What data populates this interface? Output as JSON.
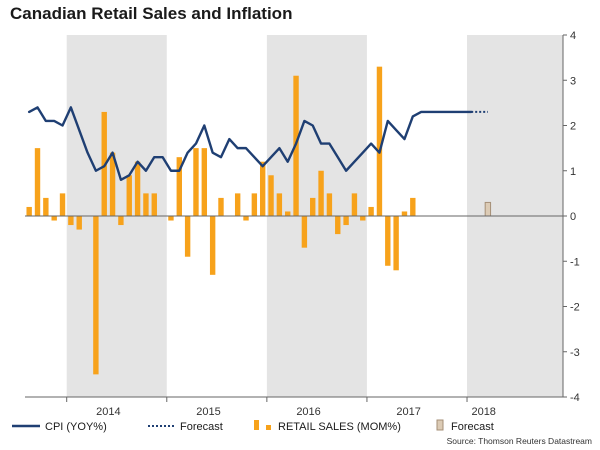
{
  "colors": {
    "cpi": "#1f3f73",
    "retail": "#f7a21b",
    "retail_forecast_fill": "#dccbb5",
    "retail_forecast_stroke": "#a58f77",
    "shade": "#e4e4e4",
    "axis": "#666666"
  },
  "chart_data": {
    "type": "bar+line",
    "title": "Canadian Retail Sales and Inflation",
    "source": "Source: Thomson Reuters Datastream",
    "ylim": [
      -4,
      4
    ],
    "yticks": [
      -4,
      -3,
      -2,
      -1,
      0,
      1,
      2,
      3,
      4
    ],
    "ytick_labels": [
      "-4",
      "-3",
      "-2",
      "-1",
      "0",
      "1",
      "2",
      "3",
      "4"
    ],
    "y_axis_side": "right",
    "x_start": "2013-08",
    "year_labels": [
      {
        "label": "2014",
        "at": "2014-06"
      },
      {
        "label": "2015",
        "at": "2015-06"
      },
      {
        "label": "2016",
        "at": "2016-06"
      },
      {
        "label": "2017",
        "at": "2017-06"
      },
      {
        "label": "2018",
        "at": "2018-03"
      }
    ],
    "shaded_years": [
      "2014",
      "2016",
      "2018"
    ],
    "grid": false,
    "legend": {
      "position": "bottom",
      "items": [
        {
          "label": "CPI (YOY%)",
          "kind": "solid-line"
        },
        {
          "label": "Forecast",
          "kind": "dotted-line"
        },
        {
          "label": "RETAIL SALES (MOM%)",
          "kind": "bar"
        },
        {
          "label": "Forecast",
          "kind": "bar-forecast"
        }
      ]
    },
    "series": [
      {
        "name": "RETAIL SALES (MOM%)",
        "type": "bar",
        "x": [
          "2013-08",
          "2013-09",
          "2013-10",
          "2013-11",
          "2013-12",
          "2014-01",
          "2014-02",
          "2014-03",
          "2014-04",
          "2014-05",
          "2014-06",
          "2014-07",
          "2014-08",
          "2014-09",
          "2014-10",
          "2014-11",
          "2014-12",
          "2015-01",
          "2015-02",
          "2015-03",
          "2015-04",
          "2015-05",
          "2015-06",
          "2015-07",
          "2015-08",
          "2015-09",
          "2015-10",
          "2015-11",
          "2015-12",
          "2016-01",
          "2016-02",
          "2016-03",
          "2016-04",
          "2016-05",
          "2016-06",
          "2016-07",
          "2016-08",
          "2016-09",
          "2016-10",
          "2016-11",
          "2016-12",
          "2017-01",
          "2017-02",
          "2017-03",
          "2017-04",
          "2017-05",
          "2017-06",
          "2017-07",
          "2017-08",
          "2017-09",
          "2017-10",
          "2017-11",
          "2017-12",
          "2018-01",
          "2018-02"
        ],
        "values": [
          0.2,
          1.5,
          0.4,
          -0.1,
          0.5,
          -0.2,
          -0.3,
          0,
          -3.5,
          2.3,
          1.4,
          -0.2,
          0.9,
          1.2,
          0.5,
          0.5,
          0,
          -0.1,
          1.3,
          -0.9,
          1.5,
          1.5,
          -1.3,
          0.4,
          0,
          0.5,
          -0.1,
          0.5,
          1.2,
          0.9,
          0.5,
          0.1,
          3.1,
          -0.7,
          0.4,
          1.0,
          0.5,
          -0.4,
          -0.2,
          0.5,
          -0.1,
          0.2,
          3.3,
          -1.1,
          -1.2,
          0.1,
          0.4,
          0,
          0,
          0,
          0,
          0,
          0,
          0,
          0
        ]
      },
      {
        "name": "RETAIL SALES (MOM%) Forecast",
        "type": "bar",
        "x": [
          "2018-03"
        ],
        "values": [
          0.3
        ]
      },
      {
        "name": "CPI (YOY%)",
        "type": "line",
        "x": [
          "2013-08",
          "2013-09",
          "2013-10",
          "2013-11",
          "2013-12",
          "2014-01",
          "2014-02",
          "2014-03",
          "2014-04",
          "2014-05",
          "2014-06",
          "2014-07",
          "2014-08",
          "2014-09",
          "2014-10",
          "2014-11",
          "2014-12",
          "2015-01",
          "2015-02",
          "2015-03",
          "2015-04",
          "2015-05",
          "2015-06",
          "2015-07",
          "2015-08",
          "2015-09",
          "2015-10",
          "2015-11",
          "2015-12",
          "2016-01",
          "2016-02",
          "2016-03",
          "2016-04",
          "2016-05",
          "2016-06",
          "2016-07",
          "2016-08",
          "2016-09",
          "2016-10",
          "2016-11",
          "2016-12",
          "2017-01",
          "2017-02",
          "2017-03",
          "2017-04",
          "2017-05",
          "2017-06",
          "2017-07",
          "2017-08",
          "2017-09",
          "2017-10",
          "2017-11",
          "2017-12",
          "2018-01",
          "2018-02"
        ],
        "values": [
          2.3,
          2.4,
          2.1,
          2.1,
          2.0,
          2.4,
          1.9,
          1.4,
          1.0,
          1.1,
          1.4,
          0.8,
          0.9,
          1.2,
          1.0,
          1.3,
          1.3,
          1.0,
          1.0,
          1.4,
          1.6,
          2.0,
          1.4,
          1.3,
          1.7,
          1.5,
          1.5,
          1.3,
          1.1,
          1.3,
          1.5,
          1.2,
          1.6,
          2.1,
          2.0,
          1.6,
          1.6,
          1.3,
          1.0,
          1.2,
          1.4,
          1.6,
          1.4,
          2.1,
          1.9,
          1.7,
          2.2,
          2.3,
          2.3,
          2.3,
          2.3,
          2.3,
          2.3,
          2.3,
          2.3
        ]
      },
      {
        "name": "CPI (YOY%) Forecast",
        "type": "line",
        "style": "dotted",
        "x": [
          "2018-01",
          "2018-02",
          "2018-03"
        ],
        "values": [
          2.3,
          2.3,
          2.3
        ]
      }
    ]
  }
}
